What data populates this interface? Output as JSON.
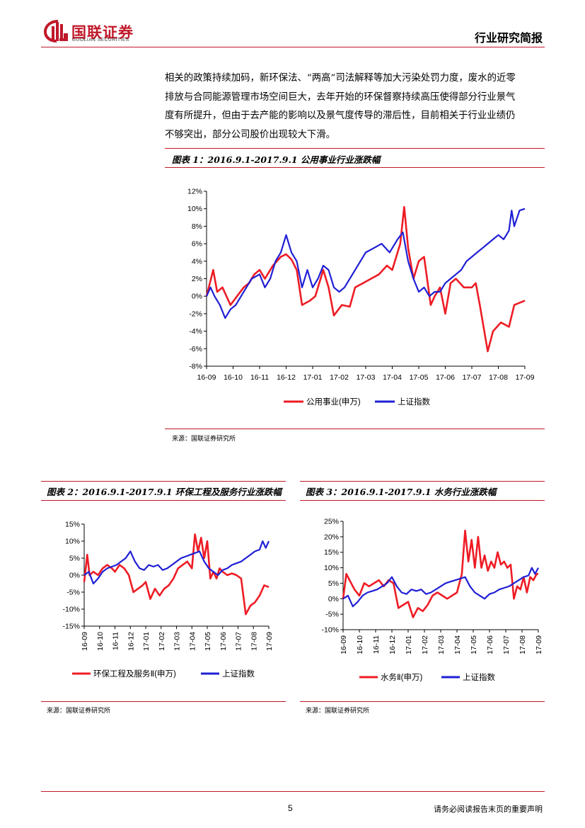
{
  "header": {
    "logo_name": "国联证券",
    "logo_sub": "GUOLIAN SECURITIES",
    "doc_type": "行业研究简报",
    "colors": {
      "brand": "#c0192a"
    }
  },
  "paragraph_lines": [
    "相关的政策持续加码，新环保法、“两高”司法解释等加大污染处罚力度，废水的近零",
    "排放与合同能源管理市场空间巨大，去年开始的环保督察持续高压使得部分行业景气",
    "度有所提升，但由于去产能的影响以及景气度传导的滞后性，目前相关于行业业绩仍",
    "不够突出，部分公司股价出现较大下滑。"
  ],
  "figures": {
    "fig1": {
      "title": "图表 1：2016.9.1-2017.9.1 公用事业行业涨跌幅",
      "source": "来源：国联证券研究所"
    },
    "fig2": {
      "title": "图表 2：2016.9.1-2017.9.1 环保工程及服务行业涨跌幅",
      "source": "来源：国联证券研究所"
    },
    "fig3": {
      "title": "图表 3：2016.9.1-2017.9.1 水务行业涨跌幅",
      "source": "来源：国联证券研究所"
    }
  },
  "chart_data": [
    {
      "id": "fig1",
      "type": "line",
      "ylim": [
        -8,
        12
      ],
      "yticks": [
        -8,
        -6,
        -4,
        -2,
        0,
        2,
        4,
        6,
        8,
        10,
        12
      ],
      "ytick_labels": [
        "-8%",
        "-6%",
        "-4%",
        "-2%",
        "0%",
        "2%",
        "4%",
        "6%",
        "8%",
        "10%",
        "12%"
      ],
      "xlim": [
        0,
        12
      ],
      "categories": [
        "16-09",
        "16-10",
        "16-11",
        "16-12",
        "17-01",
        "17-02",
        "17-03",
        "17-04",
        "17-05",
        "17-06",
        "17-07",
        "17-08",
        "17-09"
      ],
      "legend_position": "bottom",
      "series": [
        {
          "name": "公用事业(申万)",
          "color": "#ee1c25",
          "x": [
            0,
            0.25,
            0.4,
            0.6,
            0.9,
            1.2,
            1.4,
            1.6,
            1.8,
            2.0,
            2.2,
            2.5,
            2.8,
            3.0,
            3.2,
            3.4,
            3.6,
            3.9,
            4.1,
            4.4,
            4.6,
            4.8,
            5.1,
            5.4,
            5.6,
            5.9,
            6.2,
            6.5,
            6.8,
            7.0,
            7.3,
            7.45,
            7.6,
            7.8,
            8.0,
            8.2,
            8.45,
            8.6,
            8.8,
            9.0,
            9.2,
            9.4,
            9.7,
            10.0,
            10.15,
            10.3,
            10.6,
            10.8,
            11.1,
            11.4,
            11.6,
            12.0
          ],
          "values": [
            0,
            3,
            0.5,
            1.0,
            -1.0,
            0.2,
            1.0,
            1.5,
            2.5,
            3.0,
            2.0,
            3.5,
            4.5,
            4.8,
            4.2,
            3.0,
            -1.0,
            -0.5,
            0,
            3.0,
            1.0,
            -2.2,
            -1.0,
            -1.2,
            1.0,
            1.5,
            2.0,
            2.5,
            3.5,
            3.0,
            6.0,
            10.2,
            5.5,
            2.0,
            4.0,
            4.5,
            -1.0,
            0,
            1.0,
            -2.0,
            1.5,
            2.0,
            1.0,
            1.0,
            1.5,
            -1.0,
            -6.3,
            -4.0,
            -3.0,
            -3.5,
            -1.0,
            -0.5
          ]
        },
        {
          "name": "上证指数",
          "color": "#1f1fd6",
          "x": [
            0,
            0.15,
            0.3,
            0.5,
            0.7,
            0.9,
            1.1,
            1.3,
            1.5,
            1.7,
            2.0,
            2.2,
            2.4,
            2.6,
            2.8,
            3.0,
            3.2,
            3.4,
            3.6,
            3.8,
            4.0,
            4.2,
            4.4,
            4.6,
            4.8,
            5.0,
            5.2,
            5.5,
            5.8,
            6.0,
            6.3,
            6.6,
            6.9,
            7.2,
            7.4,
            7.6,
            7.8,
            8.0,
            8.2,
            8.4,
            8.6,
            8.8,
            9.0,
            9.2,
            9.4,
            9.6,
            9.8,
            10.0,
            10.2,
            10.4,
            10.6,
            10.8,
            11.0,
            11.2,
            11.4,
            11.5,
            11.6,
            11.8,
            12.0
          ],
          "values": [
            0,
            1.0,
            0,
            -1.0,
            -2.5,
            -1.5,
            -1.0,
            0,
            1.0,
            2.0,
            2.5,
            1.0,
            2.0,
            4.0,
            5.0,
            7.0,
            5.0,
            4.0,
            1.0,
            3.0,
            1.0,
            2.0,
            3.5,
            3.0,
            1.0,
            0.5,
            1.0,
            2.5,
            4.0,
            5.0,
            5.5,
            6.0,
            5.0,
            6.5,
            7.3,
            4.0,
            2.0,
            0.5,
            1.0,
            0,
            0.5,
            0.5,
            1.5,
            2.0,
            2.5,
            3.0,
            4.0,
            4.5,
            5.0,
            5.5,
            6.0,
            6.5,
            7.0,
            6.5,
            7.5,
            9.8,
            8.0,
            9.8,
            10.0
          ]
        }
      ]
    },
    {
      "id": "fig2",
      "type": "line",
      "ylim": [
        -15,
        15
      ],
      "yticks": [
        -15,
        -10,
        -5,
        0,
        5,
        10,
        15
      ],
      "ytick_labels": [
        "-15%",
        "-10%",
        "-5%",
        "0%",
        "5%",
        "10%",
        "15%"
      ],
      "xlim": [
        0,
        12
      ],
      "categories": [
        "16-09",
        "16-10",
        "16-11",
        "16-12",
        "17-01",
        "17-02",
        "17-03",
        "17-04",
        "17-05",
        "17-06",
        "17-07",
        "17-08",
        "17-09"
      ],
      "legend_position": "bottom",
      "series": [
        {
          "name": "环保工程及服务Ⅱ(申万)",
          "color": "#ee1c25",
          "x": [
            0,
            0.2,
            0.35,
            0.6,
            0.9,
            1.2,
            1.5,
            1.8,
            2.0,
            2.3,
            2.6,
            2.9,
            3.2,
            3.5,
            3.8,
            4.0,
            4.3,
            4.6,
            4.9,
            5.2,
            5.5,
            5.8,
            6.1,
            6.4,
            6.7,
            7.0,
            7.2,
            7.4,
            7.6,
            7.8,
            8.0,
            8.2,
            8.4,
            8.6,
            8.8,
            9.0,
            9.3,
            9.6,
            9.9,
            10.2,
            10.5,
            10.8,
            11.1,
            11.4,
            11.7,
            12.0
          ],
          "values": [
            -2,
            6,
            0,
            1.0,
            0,
            2.0,
            3.0,
            2.0,
            1.0,
            3.0,
            2.0,
            0,
            -5.0,
            -4.0,
            -3.0,
            -2.0,
            -7.0,
            -4.0,
            -6.0,
            -4.0,
            -3.0,
            -1.0,
            2.0,
            3.0,
            4.0,
            2.0,
            12.0,
            7.0,
            11.0,
            5.0,
            10.0,
            -1.0,
            1.0,
            -1.0,
            2.0,
            1.0,
            0,
            0.5,
            0,
            -1.0,
            -11.5,
            -9.0,
            -8.0,
            -6.0,
            -3.0,
            -3.5
          ]
        },
        {
          "name": "上证指数",
          "color": "#1f1fd6",
          "x": [
            0,
            0.3,
            0.6,
            0.9,
            1.2,
            1.5,
            1.8,
            2.1,
            2.4,
            2.7,
            3.0,
            3.3,
            3.6,
            3.9,
            4.2,
            4.5,
            4.8,
            5.1,
            5.4,
            5.7,
            6.0,
            6.3,
            6.6,
            6.9,
            7.2,
            7.5,
            7.8,
            8.1,
            8.4,
            8.7,
            9.0,
            9.3,
            9.6,
            9.9,
            10.2,
            10.5,
            10.8,
            11.1,
            11.4,
            11.6,
            11.8,
            12.0
          ],
          "values": [
            0,
            1.0,
            -2.5,
            -1.0,
            1.0,
            2.0,
            2.5,
            3.0,
            4.0,
            5.0,
            7.0,
            4.0,
            2.0,
            1.5,
            3.0,
            2.5,
            3.0,
            1.5,
            2.0,
            3.0,
            4.0,
            5.0,
            5.5,
            6.0,
            6.5,
            7.0,
            4.0,
            2.0,
            1.0,
            0,
            1.5,
            2.0,
            3.0,
            3.5,
            4.0,
            5.0,
            6.0,
            7.0,
            7.5,
            10.0,
            8.0,
            10.0
          ]
        }
      ]
    },
    {
      "id": "fig3",
      "type": "line",
      "ylim": [
        -10,
        25
      ],
      "yticks": [
        -10,
        -5,
        0,
        5,
        10,
        15,
        20,
        25
      ],
      "ytick_labels": [
        "-10%",
        "-5%",
        "0%",
        "5%",
        "10%",
        "15%",
        "20%",
        "25%"
      ],
      "xlim": [
        0,
        12
      ],
      "categories": [
        "16-09",
        "16-10",
        "16-11",
        "16-12",
        "17-01",
        "17-02",
        "17-03",
        "17-04",
        "17-05",
        "17-06",
        "17-07",
        "17-08",
        "17-09"
      ],
      "legend_position": "bottom",
      "series": [
        {
          "name": "水务Ⅱ(申万)",
          "color": "#ee1c25",
          "x": [
            0,
            0.2,
            0.4,
            0.7,
            1.0,
            1.3,
            1.6,
            1.9,
            2.2,
            2.5,
            2.8,
            3.1,
            3.4,
            3.7,
            4.0,
            4.3,
            4.6,
            4.9,
            5.2,
            5.5,
            5.8,
            6.1,
            6.4,
            6.7,
            7.0,
            7.3,
            7.5,
            7.7,
            7.9,
            8.1,
            8.3,
            8.5,
            8.7,
            8.9,
            9.1,
            9.3,
            9.5,
            9.7,
            9.9,
            10.1,
            10.3,
            10.5,
            10.7,
            10.9,
            11.1,
            11.3,
            11.5,
            11.7,
            11.9,
            12.0
          ],
          "values": [
            0,
            8.0,
            6.0,
            3.0,
            1.0,
            5.0,
            4.0,
            5.0,
            6.0,
            4.0,
            6.0,
            5.0,
            -3.0,
            -2.0,
            -1.0,
            -6.0,
            -3.0,
            -4.0,
            -2.0,
            1.0,
            2.0,
            1.0,
            0,
            1.0,
            2.0,
            8.0,
            22.0,
            12.0,
            19.0,
            10.0,
            20.0,
            10.0,
            14.0,
            9.0,
            12.0,
            10.0,
            15.0,
            11.0,
            12.0,
            10.0,
            11.0,
            0,
            4.0,
            3.0,
            7.0,
            2.0,
            7.0,
            6.0,
            8.0,
            8.0
          ]
        },
        {
          "name": "上证指数",
          "color": "#1f1fd6",
          "x": [
            0,
            0.3,
            0.6,
            0.9,
            1.2,
            1.5,
            1.8,
            2.1,
            2.4,
            2.7,
            3.0,
            3.3,
            3.6,
            3.9,
            4.2,
            4.5,
            4.8,
            5.1,
            5.4,
            5.7,
            6.0,
            6.3,
            6.6,
            6.9,
            7.2,
            7.5,
            7.8,
            8.1,
            8.4,
            8.7,
            9.0,
            9.3,
            9.6,
            9.9,
            10.2,
            10.5,
            10.8,
            11.1,
            11.4,
            11.6,
            11.8,
            12.0
          ],
          "values": [
            0,
            1.0,
            -2.5,
            -1.0,
            1.0,
            2.0,
            2.5,
            3.0,
            4.0,
            5.0,
            7.0,
            4.0,
            2.0,
            1.5,
            3.0,
            2.5,
            3.0,
            1.5,
            2.0,
            3.0,
            4.0,
            5.0,
            5.5,
            6.0,
            6.5,
            7.0,
            4.0,
            2.0,
            1.0,
            0,
            1.5,
            2.0,
            3.0,
            3.5,
            4.0,
            5.0,
            6.0,
            7.0,
            7.5,
            10.0,
            8.0,
            10.0
          ]
        }
      ]
    }
  ],
  "footer": {
    "page_number": "5",
    "note": "请务必阅读报告末页的重要声明"
  }
}
